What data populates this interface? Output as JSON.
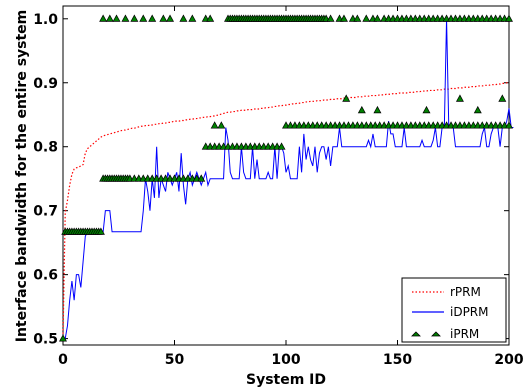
{
  "chart_data": {
    "type": "line",
    "xlabel": "System ID",
    "ylabel": "Interface bandwidth for the entire system",
    "xlim": [
      0,
      200
    ],
    "ylim": [
      0.49,
      1.02
    ],
    "x_ticks": [
      "0",
      "50",
      "100",
      "150",
      "200"
    ],
    "y_ticks": [
      "0.5",
      "0.6",
      "0.7",
      "0.8",
      "0.9",
      "1.0"
    ],
    "grid": false,
    "legend_position": "bottom-right",
    "colors": {
      "rPRM": "#ff0000",
      "iDPRM": "#0000ff",
      "iPRM_fill": "#008000",
      "iPRM_edge": "#000000"
    },
    "series": [
      {
        "name": "rPRM",
        "style": "dotted",
        "values": [
          0.502,
          0.697,
          0.716,
          0.74,
          0.757,
          0.765,
          0.767,
          0.768,
          0.77,
          0.772,
          0.79,
          0.797,
          0.8,
          0.803,
          0.806,
          0.809,
          0.812,
          0.815,
          0.817,
          0.818,
          0.819,
          0.82,
          0.821,
          0.822,
          0.823,
          0.824,
          0.825,
          0.826,
          0.826,
          0.827,
          0.828,
          0.829,
          0.829,
          0.83,
          0.831,
          0.832,
          0.832,
          0.833,
          0.833,
          0.834,
          0.834,
          0.835,
          0.835,
          0.836,
          0.836,
          0.837,
          0.837,
          0.838,
          0.838,
          0.839,
          0.84,
          0.84,
          0.84,
          0.841,
          0.841,
          0.842,
          0.842,
          0.843,
          0.843,
          0.844,
          0.844,
          0.845,
          0.845,
          0.846,
          0.846,
          0.847,
          0.847,
          0.848,
          0.848,
          0.849,
          0.85,
          0.851,
          0.852,
          0.853,
          0.854,
          0.854,
          0.855,
          0.855,
          0.856,
          0.856,
          0.857,
          0.857,
          0.857,
          0.858,
          0.858,
          0.858,
          0.859,
          0.859,
          0.859,
          0.86,
          0.86,
          0.861,
          0.861,
          0.862,
          0.862,
          0.863,
          0.863,
          0.864,
          0.864,
          0.865,
          0.865,
          0.866,
          0.866,
          0.867,
          0.867,
          0.868,
          0.868,
          0.869,
          0.869,
          0.87,
          0.87,
          0.871,
          0.871,
          0.871,
          0.872,
          0.872,
          0.872,
          0.873,
          0.873,
          0.873,
          0.874,
          0.874,
          0.874,
          0.875,
          0.875,
          0.875,
          0.876,
          0.876,
          0.876,
          0.877,
          0.877,
          0.877,
          0.878,
          0.878,
          0.878,
          0.879,
          0.879,
          0.879,
          0.88,
          0.88,
          0.88,
          0.88,
          0.881,
          0.881,
          0.881,
          0.882,
          0.882,
          0.882,
          0.883,
          0.883,
          0.883,
          0.884,
          0.884,
          0.884,
          0.884,
          0.885,
          0.885,
          0.885,
          0.886,
          0.886,
          0.886,
          0.887,
          0.887,
          0.887,
          0.888,
          0.888,
          0.888,
          0.888,
          0.889,
          0.889,
          0.889,
          0.89,
          0.89,
          0.89,
          0.891,
          0.891,
          0.891,
          0.892,
          0.892,
          0.892,
          0.893,
          0.893,
          0.893,
          0.894,
          0.894,
          0.894,
          0.895,
          0.895,
          0.895,
          0.896,
          0.896,
          0.896,
          0.897,
          0.897,
          0.897,
          0.898,
          0.898,
          0.899,
          0.899,
          0.9,
          0.9
        ]
      },
      {
        "name": "iDPRM",
        "style": "solid",
        "values": [
          0.5,
          0.5,
          0.52,
          0.56,
          0.59,
          0.56,
          0.6,
          0.6,
          0.58,
          0.62,
          0.66,
          0.667,
          0.667,
          0.667,
          0.667,
          0.667,
          0.667,
          0.667,
          0.667,
          0.7,
          0.7,
          0.7,
          0.667,
          0.667,
          0.667,
          0.667,
          0.667,
          0.667,
          0.667,
          0.667,
          0.667,
          0.667,
          0.667,
          0.667,
          0.667,
          0.667,
          0.7,
          0.75,
          0.73,
          0.7,
          0.75,
          0.72,
          0.8,
          0.72,
          0.75,
          0.74,
          0.73,
          0.76,
          0.75,
          0.74,
          0.75,
          0.76,
          0.73,
          0.79,
          0.74,
          0.71,
          0.75,
          0.76,
          0.74,
          0.75,
          0.76,
          0.75,
          0.74,
          0.75,
          0.76,
          0.74,
          0.75,
          0.75,
          0.75,
          0.75,
          0.75,
          0.75,
          0.75,
          0.83,
          0.81,
          0.76,
          0.75,
          0.75,
          0.75,
          0.75,
          0.8,
          0.76,
          0.75,
          0.75,
          0.75,
          0.8,
          0.75,
          0.78,
          0.75,
          0.75,
          0.75,
          0.75,
          0.76,
          0.75,
          0.75,
          0.8,
          0.75,
          0.8,
          0.8,
          0.79,
          0.76,
          0.77,
          0.75,
          0.75,
          0.75,
          0.75,
          0.8,
          0.76,
          0.82,
          0.78,
          0.8,
          0.78,
          0.77,
          0.8,
          0.76,
          0.79,
          0.8,
          0.8,
          0.78,
          0.8,
          0.77,
          0.8,
          0.8,
          0.8,
          0.83,
          0.8,
          0.8,
          0.8,
          0.8,
          0.8,
          0.8,
          0.8,
          0.8,
          0.8,
          0.8,
          0.8,
          0.8,
          0.81,
          0.8,
          0.82,
          0.8,
          0.8,
          0.8,
          0.8,
          0.8,
          0.8,
          0.84,
          0.82,
          0.82,
          0.8,
          0.8,
          0.8,
          0.8,
          0.83,
          0.8,
          0.8,
          0.8,
          0.8,
          0.8,
          0.8,
          0.8,
          0.81,
          0.8,
          0.8,
          0.8,
          0.8,
          0.81,
          0.83,
          0.8,
          0.8,
          0.83,
          0.83,
          1.0,
          0.83,
          0.83,
          0.83,
          0.8,
          0.8,
          0.8,
          0.8,
          0.8,
          0.8,
          0.8,
          0.8,
          0.8,
          0.8,
          0.8,
          0.8,
          0.82,
          0.83,
          0.8,
          0.8,
          0.82,
          0.83,
          0.83,
          0.83,
          0.8,
          0.83,
          0.83,
          0.84,
          0.86,
          0.83,
          0.83
        ]
      },
      {
        "name": "iPRM",
        "style": "triangle-markers",
        "values": [
          0.5,
          0.667,
          0.667,
          0.667,
          0.667,
          0.667,
          0.667,
          0.667,
          0.667,
          0.667,
          0.667,
          0.667,
          0.667,
          0.667,
          0.667,
          0.667,
          0.667,
          0.667,
          0.75,
          0.75,
          0.75,
          0.75,
          0.75,
          0.75,
          0.75,
          0.75,
          0.75,
          0.75,
          0.75,
          0.75,
          0.75,
          0.75,
          0.75,
          0.75,
          0.75,
          0.75,
          0.75,
          0.8,
          0.75,
          0.75,
          0.75,
          0.75,
          0.75,
          0.75,
          0.75,
          0.75,
          0.75,
          0.75,
          0.75,
          0.75,
          0.75,
          0.75,
          0.75,
          0.75,
          0.75,
          0.75,
          0.75,
          0.75,
          0.75,
          0.75,
          0.75,
          0.75,
          0.75,
          0.8,
          0.8,
          0.8,
          0.8,
          0.8,
          0.8,
          0.8,
          0.8,
          0.8,
          0.8,
          0.8,
          0.8,
          0.8,
          0.8,
          0.8,
          0.8,
          0.8,
          0.8,
          0.8,
          0.8,
          0.8,
          0.8,
          0.8,
          0.8,
          0.8,
          0.8,
          0.8,
          0.8,
          0.8,
          0.8,
          0.8,
          0.8,
          0.8,
          0.8,
          0.8,
          0.8,
          0.833,
          0.833,
          0.833,
          0.833,
          0.833,
          0.833,
          0.833,
          0.833,
          0.833,
          0.833,
          0.833,
          0.833,
          0.833,
          0.833,
          0.833,
          0.833,
          0.833,
          0.833,
          0.833,
          0.833,
          0.833,
          0.833,
          0.833,
          0.833,
          0.833,
          0.833,
          0.833,
          0.833,
          0.833,
          0.833,
          0.833,
          0.833,
          0.833,
          0.833,
          0.833,
          0.833,
          0.833,
          0.833,
          0.833,
          0.833,
          0.833,
          0.833,
          0.833,
          0.833,
          0.833,
          0.833,
          0.833,
          0.833,
          0.833,
          0.833,
          0.833,
          0.833,
          0.833,
          0.833,
          0.833,
          0.833,
          0.833,
          0.833,
          0.833,
          0.833,
          0.833,
          0.833,
          0.833,
          0.833,
          0.833,
          0.833,
          0.833,
          0.833,
          0.833,
          0.833,
          0.833,
          0.833,
          0.833,
          0.833,
          0.833,
          0.833,
          0.833,
          0.833,
          0.833,
          0.833,
          0.833,
          0.833,
          0.833,
          0.833,
          0.833,
          0.833,
          0.833,
          0.833,
          0.833,
          0.833,
          0.833,
          0.833,
          0.833,
          0.833,
          0.833,
          0.833,
          0.833,
          0.833,
          0.833,
          0.833,
          0.833,
          0.833
        ],
        "extra_points": [
          [
            18,
            1.0
          ],
          [
            21,
            1.0
          ],
          [
            24,
            1.0
          ],
          [
            28,
            1.0
          ],
          [
            32,
            1.0
          ],
          [
            36,
            1.0
          ],
          [
            40,
            1.0
          ],
          [
            45,
            1.0
          ],
          [
            48,
            1.0
          ],
          [
            54,
            1.0
          ],
          [
            58,
            1.0
          ],
          [
            64,
            1.0
          ],
          [
            66,
            1.0
          ],
          [
            74,
            1.0
          ],
          [
            75,
            1.0
          ],
          [
            76,
            1.0
          ],
          [
            77,
            1.0
          ],
          [
            78,
            1.0
          ],
          [
            79,
            1.0
          ],
          [
            80,
            1.0
          ],
          [
            81,
            1.0
          ],
          [
            82,
            1.0
          ],
          [
            83,
            1.0
          ],
          [
            84,
            1.0
          ],
          [
            85,
            1.0
          ],
          [
            86,
            1.0
          ],
          [
            87,
            1.0
          ],
          [
            88,
            1.0
          ],
          [
            89,
            1.0
          ],
          [
            90,
            1.0
          ],
          [
            91,
            1.0
          ],
          [
            92,
            1.0
          ],
          [
            93,
            1.0
          ],
          [
            94,
            1.0
          ],
          [
            95,
            1.0
          ],
          [
            96,
            1.0
          ],
          [
            97,
            1.0
          ],
          [
            98,
            1.0
          ],
          [
            99,
            1.0
          ],
          [
            100,
            1.0
          ],
          [
            101,
            1.0
          ],
          [
            102,
            1.0
          ],
          [
            103,
            1.0
          ],
          [
            104,
            1.0
          ],
          [
            105,
            1.0
          ],
          [
            106,
            1.0
          ],
          [
            107,
            1.0
          ],
          [
            108,
            1.0
          ],
          [
            109,
            1.0
          ],
          [
            110,
            1.0
          ],
          [
            111,
            1.0
          ],
          [
            112,
            1.0
          ],
          [
            113,
            1.0
          ],
          [
            114,
            1.0
          ],
          [
            115,
            1.0
          ],
          [
            116,
            1.0
          ],
          [
            117,
            1.0
          ],
          [
            118,
            1.0
          ],
          [
            120,
            1.0
          ],
          [
            124,
            1.0
          ],
          [
            126,
            1.0
          ],
          [
            130,
            1.0
          ],
          [
            132,
            1.0
          ],
          [
            136,
            1.0
          ],
          [
            139,
            1.0
          ],
          [
            141,
            1.0
          ],
          [
            144,
            1.0
          ],
          [
            146,
            1.0
          ],
          [
            148,
            1.0
          ],
          [
            150,
            1.0
          ],
          [
            152,
            1.0
          ],
          [
            154,
            1.0
          ],
          [
            156,
            1.0
          ],
          [
            158,
            1.0
          ],
          [
            160,
            1.0
          ],
          [
            162,
            1.0
          ],
          [
            164,
            1.0
          ],
          [
            166,
            1.0
          ],
          [
            168,
            1.0
          ],
          [
            170,
            1.0
          ],
          [
            172,
            1.0
          ],
          [
            174,
            1.0
          ],
          [
            176,
            1.0
          ],
          [
            178,
            1.0
          ],
          [
            180,
            1.0
          ],
          [
            182,
            1.0
          ],
          [
            184,
            1.0
          ],
          [
            186,
            1.0
          ],
          [
            188,
            1.0
          ],
          [
            190,
            1.0
          ],
          [
            192,
            1.0
          ],
          [
            194,
            1.0
          ],
          [
            196,
            1.0
          ],
          [
            198,
            1.0
          ],
          [
            200,
            1.0
          ],
          [
            127,
            0.875
          ],
          [
            134,
            0.857
          ],
          [
            141,
            0.857
          ],
          [
            163,
            0.857
          ],
          [
            178,
            0.875
          ],
          [
            186,
            0.857
          ],
          [
            197,
            0.875
          ],
          [
            202,
            0.875
          ],
          [
            71,
            0.833
          ],
          [
            68,
            0.833
          ]
        ]
      }
    ]
  }
}
